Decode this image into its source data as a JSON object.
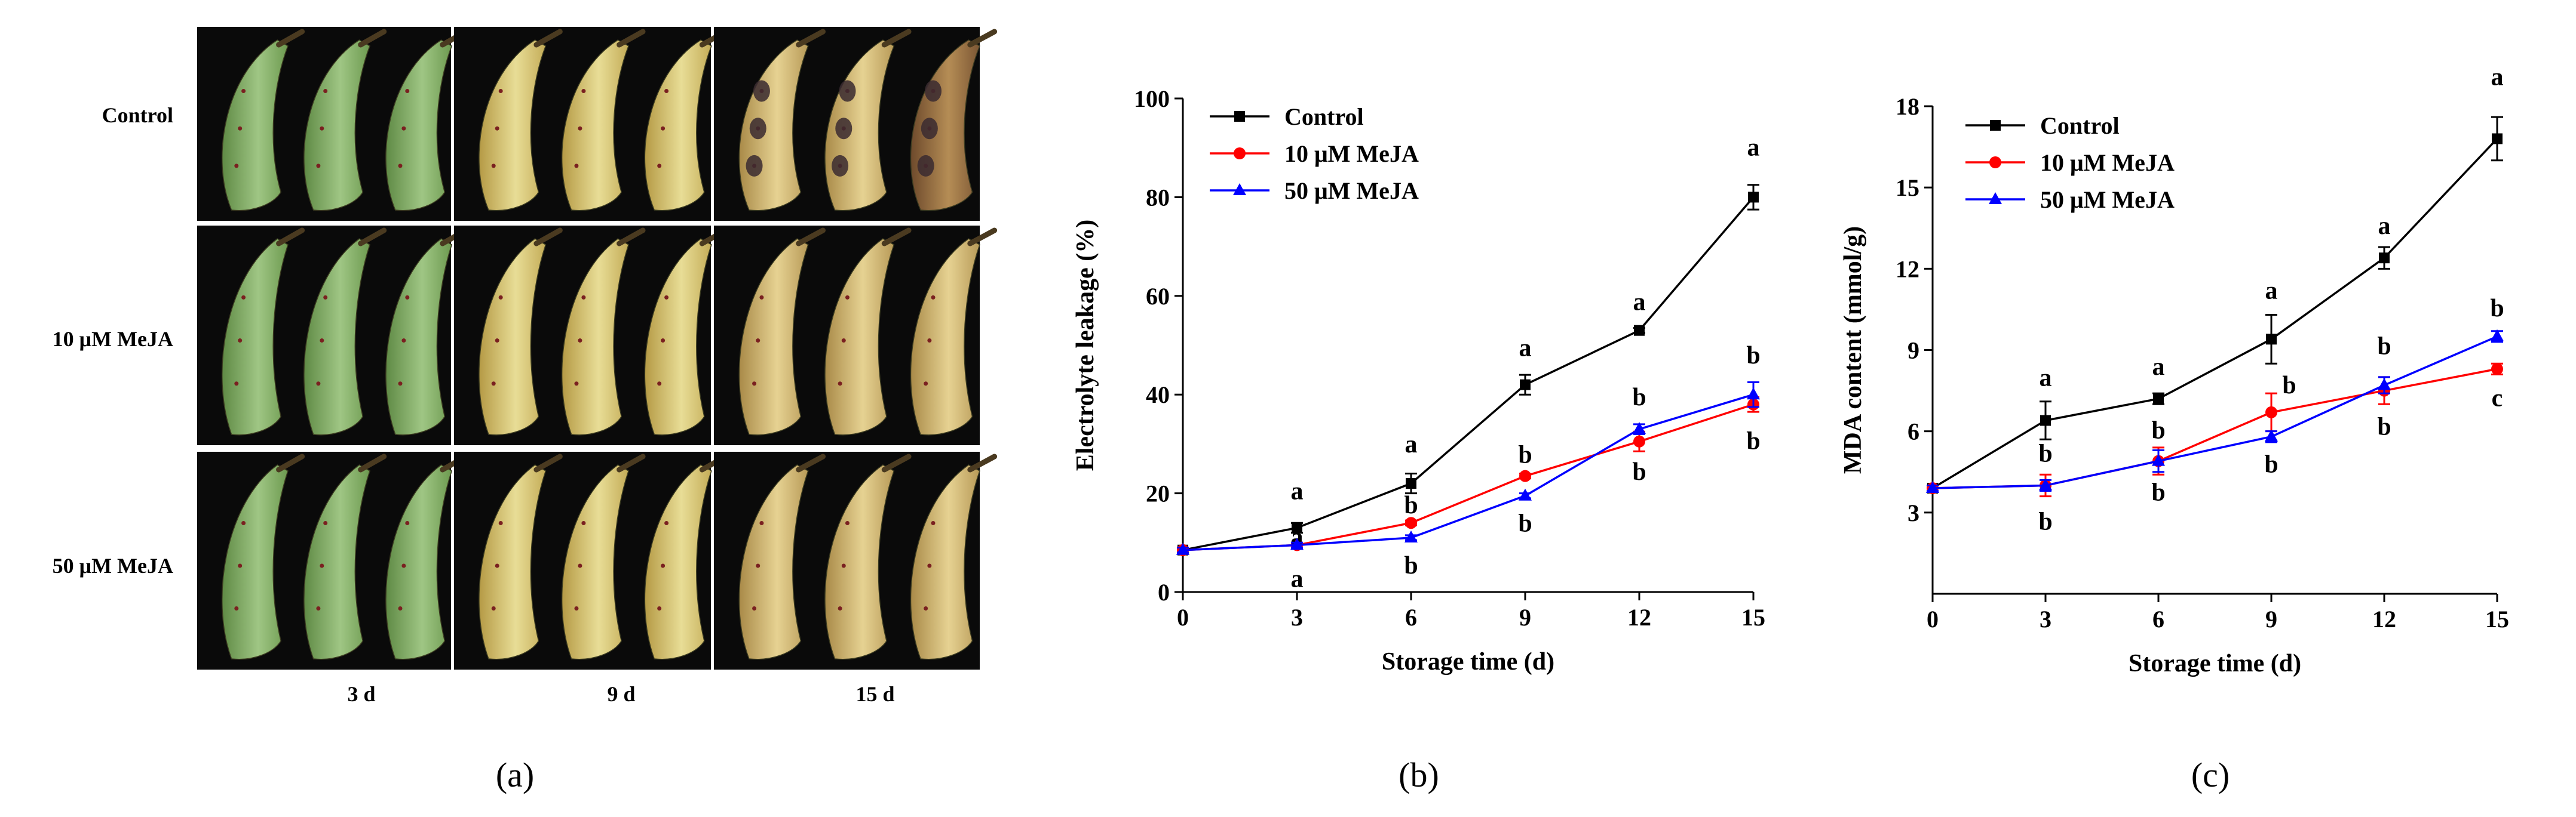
{
  "panel_a": {
    "row_labels": [
      "Control",
      "10 μM MeJA",
      "50 μM MeJA"
    ],
    "col_labels": [
      "3 d",
      "9 d",
      "15 d"
    ],
    "caption": "(a)"
  },
  "legend_labels": [
    "Control",
    "10 μM MeJA",
    "50 μM MeJA"
  ],
  "colors": {
    "control": "#000000",
    "mj10": "#ff0000",
    "mj50": "#0000ff"
  },
  "chart_data": [
    {
      "type": "line",
      "caption": "(b)",
      "xlabel": "Storage time (d)",
      "ylabel": "Electrolyte leakage (%)",
      "x": [
        0,
        3,
        6,
        9,
        12,
        15
      ],
      "xticks": [
        "0",
        "3",
        "6",
        "9",
        "12",
        "15"
      ],
      "yticks": [
        0,
        20,
        40,
        60,
        80,
        100
      ],
      "xlim": [
        0,
        15
      ],
      "ylim": [
        0,
        100
      ],
      "legend": "top-left",
      "series": [
        {
          "name": "Control",
          "color": "#000000",
          "marker": "square",
          "values": [
            8.5,
            13,
            22,
            42,
            53,
            80
          ],
          "err": [
            0.5,
            1,
            2,
            2,
            0.5,
            2.5
          ],
          "letters": [
            "",
            "a",
            "a",
            "a",
            "a",
            "a"
          ]
        },
        {
          "name": "10 μM MeJA",
          "color": "#ff0000",
          "marker": "circle",
          "values": [
            8.5,
            9.5,
            14,
            23.5,
            30.5,
            38
          ],
          "err": [
            0.5,
            0.5,
            0.5,
            0.5,
            2,
            1.5
          ],
          "letters": [
            "",
            "a",
            "b",
            "b",
            "b",
            "b"
          ]
        },
        {
          "name": "50 μM MeJA",
          "color": "#0000ff",
          "marker": "triangle",
          "values": [
            8.5,
            9.5,
            11,
            19.5,
            33,
            40
          ],
          "err": [
            0.5,
            0.5,
            0.5,
            0.5,
            1,
            2.5
          ],
          "letters": [
            "",
            "a",
            "b",
            "b",
            "b",
            "b"
          ]
        }
      ]
    },
    {
      "type": "line",
      "caption": "(c)",
      "xlabel": "Storage time (d)",
      "ylabel": "MDA content (mmol/g)",
      "x": [
        0,
        3,
        6,
        9,
        12,
        15
      ],
      "xticks": [
        "0",
        "3",
        "6",
        "9",
        "12",
        "15"
      ],
      "yticks": [
        3,
        6,
        9,
        12,
        15,
        18
      ],
      "xlim": [
        0,
        15
      ],
      "ylim": [
        0,
        18
      ],
      "legend": "top-left",
      "series": [
        {
          "name": "Control",
          "color": "#000000",
          "marker": "square",
          "values": [
            3.9,
            6.4,
            7.2,
            9.4,
            12.4,
            16.8
          ],
          "err": [
            0.1,
            0.7,
            0.2,
            0.9,
            0.4,
            0.8
          ],
          "letters": [
            "",
            "a",
            "a",
            "a",
            "a",
            "a"
          ]
        },
        {
          "name": "10 μM MeJA",
          "color": "#ff0000",
          "marker": "circle",
          "values": [
            3.9,
            4.0,
            4.9,
            6.7,
            7.5,
            8.3
          ],
          "err": [
            0.1,
            0.4,
            0.5,
            0.7,
            0.5,
            0.2
          ],
          "letters": [
            "",
            "b",
            "b",
            "b",
            "b",
            "c"
          ]
        },
        {
          "name": "50 μM MeJA",
          "color": "#0000ff",
          "marker": "triangle",
          "values": [
            3.9,
            4.0,
            4.9,
            5.8,
            7.7,
            9.5
          ],
          "err": [
            0.1,
            0.2,
            0.4,
            0.2,
            0.3,
            0.2
          ],
          "letters": [
            "",
            "b",
            "b",
            "b",
            "b",
            "b"
          ]
        }
      ]
    }
  ]
}
